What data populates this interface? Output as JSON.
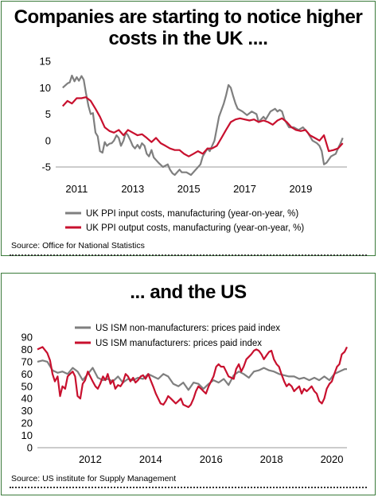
{
  "chart_data": [
    {
      "type": "line",
      "title": "Companies are starting to notice higher costs in the UK ....",
      "source": "Source: Office for National Statistics",
      "ylim": [
        -5,
        15
      ],
      "yticks": [
        "15",
        "10",
        "5",
        "0",
        "-5"
      ],
      "xlim": [
        2010.5,
        2020.9
      ],
      "xticks": [
        "2011",
        "2013",
        "2015",
        "2017",
        "2019"
      ],
      "grid": false,
      "legend_position": "bottom",
      "series": [
        {
          "name": "UK PPI input costs, manufacturing (year-on-year, %)",
          "color": "#7f7f7f",
          "x": [
            2010.75,
            2010.92,
            2011.0,
            2011.08,
            2011.17,
            2011.25,
            2011.33,
            2011.42,
            2011.5,
            2011.58,
            2011.67,
            2011.75,
            2011.83,
            2011.92,
            2012.0,
            2012.08,
            2012.17,
            2012.25,
            2012.33,
            2012.42,
            2012.5,
            2012.58,
            2012.67,
            2012.75,
            2012.83,
            2012.92,
            2013.0,
            2013.08,
            2013.17,
            2013.25,
            2013.33,
            2013.42,
            2013.5,
            2013.58,
            2013.67,
            2013.75,
            2013.83,
            2013.92,
            2014.0,
            2014.17,
            2014.33,
            2014.5,
            2014.58,
            2014.67,
            2014.75,
            2014.92,
            2015.0,
            2015.17,
            2015.33,
            2015.5,
            2015.67,
            2015.75,
            2015.92,
            2016.0,
            2016.17,
            2016.33,
            2016.5,
            2016.58,
            2016.67,
            2016.75,
            2016.83,
            2016.92,
            2017.0,
            2017.17,
            2017.33,
            2017.5,
            2017.67,
            2017.75,
            2017.92,
            2018.0,
            2018.17,
            2018.33,
            2018.42,
            2018.5,
            2018.58,
            2018.67,
            2018.83,
            2019.0,
            2019.17,
            2019.33,
            2019.5,
            2019.67,
            2019.83,
            2019.92,
            2020.0,
            2020.08,
            2020.17,
            2020.33,
            2020.5,
            2020.58,
            2020.67,
            2020.75
          ],
          "values": [
            10.0,
            10.8,
            11.0,
            12.3,
            11.2,
            12.0,
            11.3,
            12.2,
            11.5,
            9.0,
            6.5,
            5.0,
            5.2,
            1.5,
            0.8,
            -2.0,
            -2.3,
            -0.3,
            -1.0,
            -0.6,
            -0.5,
            0.0,
            1.0,
            0.5,
            -1.0,
            0.0,
            1.5,
            1.0,
            0.0,
            -1.0,
            -1.5,
            -0.8,
            -1.5,
            -0.5,
            -1.0,
            -2.5,
            -3.0,
            -1.8,
            -3.2,
            -4.2,
            -5.0,
            -4.5,
            -5.5,
            -6.2,
            -6.5,
            -5.5,
            -6.0,
            -6.0,
            -6.5,
            -5.5,
            -4.5,
            -3.0,
            -1.5,
            -2.0,
            0.0,
            4.5,
            7.0,
            8.5,
            10.5,
            10.0,
            8.5,
            7.0,
            6.0,
            5.5,
            4.8,
            5.5,
            5.0,
            3.5,
            4.5,
            4.0,
            5.5,
            6.0,
            5.5,
            5.8,
            5.5,
            4.0,
            2.5,
            2.5,
            2.0,
            2.5,
            1.5,
            0.0,
            -0.5,
            -1.0,
            -2.0,
            -4.5,
            -4.2,
            -3.0,
            -2.5,
            -1.5,
            -0.5,
            0.5
          ]
        },
        {
          "name": "UK PPI output costs, manufacturing (year-on-year, %)",
          "color": "#c8102e",
          "x": [
            2010.75,
            2010.92,
            2011.08,
            2011.25,
            2011.42,
            2011.58,
            2011.75,
            2011.92,
            2012.08,
            2012.25,
            2012.42,
            2012.58,
            2012.75,
            2012.92,
            2013.08,
            2013.25,
            2013.42,
            2013.58,
            2013.75,
            2013.92,
            2014.08,
            2014.25,
            2014.42,
            2014.58,
            2014.75,
            2014.92,
            2015.08,
            2015.25,
            2015.42,
            2015.58,
            2015.75,
            2015.92,
            2016.08,
            2016.25,
            2016.42,
            2016.58,
            2016.75,
            2016.92,
            2017.08,
            2017.25,
            2017.42,
            2017.58,
            2017.75,
            2017.92,
            2018.08,
            2018.25,
            2018.42,
            2018.58,
            2018.75,
            2018.92,
            2019.08,
            2019.25,
            2019.42,
            2019.58,
            2019.75,
            2019.92,
            2020.08,
            2020.25,
            2020.42,
            2020.58,
            2020.75
          ],
          "values": [
            6.5,
            7.5,
            7.0,
            8.0,
            8.0,
            8.2,
            7.5,
            6.0,
            4.5,
            2.5,
            1.8,
            1.5,
            2.0,
            1.0,
            2.0,
            1.5,
            1.0,
            1.2,
            0.5,
            -0.3,
            0.5,
            -0.5,
            -1.0,
            -1.5,
            -1.8,
            -1.8,
            -2.5,
            -3.0,
            -2.5,
            -2.0,
            -2.5,
            -1.5,
            -1.5,
            -1.0,
            0.5,
            2.0,
            3.5,
            4.0,
            4.2,
            4.0,
            3.8,
            4.0,
            3.5,
            3.8,
            3.5,
            3.0,
            3.8,
            4.2,
            3.5,
            2.5,
            2.0,
            1.8,
            2.0,
            1.0,
            0.5,
            0.0,
            1.0,
            -2.0,
            -1.8,
            -1.5,
            -0.5
          ]
        }
      ]
    },
    {
      "type": "line",
      "title": "... and the US",
      "source": "Source: US institute for Supply Management",
      "ylim": [
        0,
        90
      ],
      "yticks": [
        "90",
        "80",
        "70",
        "60",
        "50",
        "40",
        "30",
        "20",
        "10",
        "0"
      ],
      "xlim": [
        2010.5,
        2020.75
      ],
      "xticks": [
        "2012",
        "2014",
        "2016",
        "2018",
        "2020"
      ],
      "grid": false,
      "legend_position": "top-left",
      "series": [
        {
          "name": "US ISM non-manufacturers: prices paid index",
          "color": "#7f7f7f",
          "x": [
            2010.5,
            2010.67,
            2010.83,
            2011.0,
            2011.17,
            2011.33,
            2011.5,
            2011.67,
            2011.83,
            2012.0,
            2012.17,
            2012.33,
            2012.5,
            2012.67,
            2012.83,
            2013.0,
            2013.17,
            2013.33,
            2013.5,
            2013.67,
            2013.83,
            2014.0,
            2014.17,
            2014.33,
            2014.5,
            2014.67,
            2014.83,
            2015.0,
            2015.17,
            2015.33,
            2015.5,
            2015.67,
            2015.83,
            2016.0,
            2016.17,
            2016.33,
            2016.5,
            2016.67,
            2016.83,
            2017.0,
            2017.17,
            2017.33,
            2017.5,
            2017.67,
            2017.83,
            2018.0,
            2018.17,
            2018.33,
            2018.5,
            2018.67,
            2018.83,
            2019.0,
            2019.17,
            2019.33,
            2019.5,
            2019.67,
            2019.83,
            2020.0,
            2020.17,
            2020.33,
            2020.5,
            2020.67,
            2020.75
          ],
          "values": [
            70,
            71,
            70,
            63,
            61,
            62,
            60,
            65,
            62,
            55,
            60,
            65,
            57,
            55,
            56,
            54,
            58,
            53,
            56,
            55,
            57,
            56,
            60,
            58,
            56,
            60,
            58,
            52,
            50,
            53,
            47,
            53,
            52,
            48,
            52,
            55,
            53,
            56,
            51,
            59,
            62,
            60,
            57,
            62,
            63,
            65,
            63,
            62,
            60,
            59,
            58,
            58,
            56,
            57,
            55,
            57,
            55,
            58,
            55,
            60,
            62,
            64,
            64
          ]
        },
        {
          "name": "US ISM manufacturers: prices paid index",
          "color": "#c8102e",
          "x": [
            2010.5,
            2010.67,
            2010.83,
            2010.92,
            2011.0,
            2011.08,
            2011.17,
            2011.25,
            2011.33,
            2011.42,
            2011.5,
            2011.58,
            2011.67,
            2011.75,
            2011.83,
            2011.92,
            2012.0,
            2012.08,
            2012.17,
            2012.25,
            2012.33,
            2012.42,
            2012.5,
            2012.58,
            2012.67,
            2012.75,
            2012.83,
            2012.92,
            2013.0,
            2013.08,
            2013.17,
            2013.25,
            2013.33,
            2013.42,
            2013.5,
            2013.58,
            2013.67,
            2013.75,
            2013.83,
            2013.92,
            2014.0,
            2014.08,
            2014.17,
            2014.25,
            2014.33,
            2014.42,
            2014.5,
            2014.58,
            2014.67,
            2014.75,
            2014.83,
            2014.92,
            2015.0,
            2015.08,
            2015.17,
            2015.25,
            2015.33,
            2015.42,
            2015.5,
            2015.58,
            2015.67,
            2015.75,
            2015.83,
            2015.92,
            2016.0,
            2016.08,
            2016.17,
            2016.25,
            2016.33,
            2016.42,
            2016.5,
            2016.58,
            2016.67,
            2016.75,
            2016.83,
            2016.92,
            2017.0,
            2017.08,
            2017.17,
            2017.25,
            2017.33,
            2017.42,
            2017.5,
            2017.58,
            2017.67,
            2017.75,
            2017.83,
            2017.92,
            2018.0,
            2018.08,
            2018.17,
            2018.25,
            2018.33,
            2018.42,
            2018.5,
            2018.58,
            2018.67,
            2018.75,
            2018.83,
            2018.92,
            2019.0,
            2019.08,
            2019.17,
            2019.25,
            2019.33,
            2019.42,
            2019.5,
            2019.58,
            2019.67,
            2019.75,
            2019.83,
            2019.92,
            2020.0,
            2020.08,
            2020.17,
            2020.25,
            2020.33,
            2020.42,
            2020.5,
            2020.58,
            2020.67,
            2020.75
          ],
          "values": [
            80,
            82,
            77,
            71,
            60,
            54,
            58,
            42,
            50,
            48,
            58,
            60,
            62,
            58,
            42,
            40,
            52,
            55,
            62,
            58,
            54,
            50,
            48,
            52,
            58,
            55,
            60,
            52,
            55,
            48,
            51,
            50,
            53,
            60,
            58,
            54,
            57,
            53,
            55,
            58,
            59,
            56,
            60,
            55,
            50,
            44,
            40,
            36,
            35,
            38,
            42,
            40,
            38,
            36,
            38,
            40,
            35,
            34,
            33,
            35,
            40,
            46,
            50,
            48,
            46,
            44,
            50,
            54,
            58,
            66,
            68,
            66,
            66,
            62,
            58,
            57,
            56,
            64,
            68,
            62,
            66,
            72,
            74,
            76,
            79,
            80,
            79,
            76,
            72,
            75,
            78,
            79,
            72,
            68,
            66,
            60,
            54,
            50,
            52,
            50,
            46,
            48,
            50,
            44,
            48,
            46,
            48,
            50,
            46,
            44,
            38,
            36,
            40,
            48,
            52,
            54,
            60,
            66,
            68,
            76,
            78,
            82
          ]
        }
      ]
    }
  ]
}
